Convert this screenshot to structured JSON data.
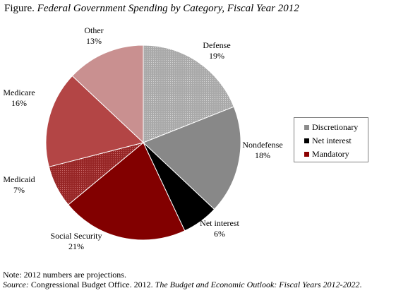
{
  "figure": {
    "prefix": "Figure.",
    "title": "Federal Government Spending by Category, Fiscal Year 2012"
  },
  "chart_data": {
    "type": "pie",
    "slices": [
      {
        "name": "Defense",
        "value": 19,
        "label": "19%",
        "group": "Discretionary",
        "color": "#a6a6a6",
        "pattern": "dots"
      },
      {
        "name": "Nondefense",
        "value": 18,
        "label": "18%",
        "group": "Discretionary",
        "color": "#888888",
        "pattern": "solid"
      },
      {
        "name": "Net interest",
        "value": 6,
        "label": "6%",
        "group": "Net interest",
        "color": "#000000",
        "pattern": "solid"
      },
      {
        "name": "Social Security",
        "value": 21,
        "label": "21%",
        "group": "Mandatory",
        "color": "#820000",
        "pattern": "solid"
      },
      {
        "name": "Medicaid",
        "value": 7,
        "label": "7%",
        "group": "Mandatory",
        "color": "#9d2a2a",
        "pattern": "dots"
      },
      {
        "name": "Medicare",
        "value": 16,
        "label": "16%",
        "group": "Mandatory",
        "color": "#b34545",
        "pattern": "solid"
      },
      {
        "name": "Other",
        "value": 13,
        "label": "13%",
        "group": "Mandatory",
        "color": "#c99090",
        "pattern": "solid"
      }
    ],
    "start_angle_deg": 0,
    "direction": "clockwise",
    "legend": {
      "placement": "right",
      "items": [
        {
          "label": "Discretionary",
          "color": "#8c8c8c"
        },
        {
          "label": "Net interest",
          "color": "#000000"
        },
        {
          "label": "Mandatory",
          "color": "#8b0000"
        }
      ]
    }
  },
  "notes": {
    "note": "Note: 2012 numbers are projections.",
    "source_prefix": "Source:",
    "source_text": " Congressional Budget Office. 2012. ",
    "source_title": "The Budget and Economic Outlook: Fiscal Years 2012-2022",
    "source_suffix": "."
  }
}
